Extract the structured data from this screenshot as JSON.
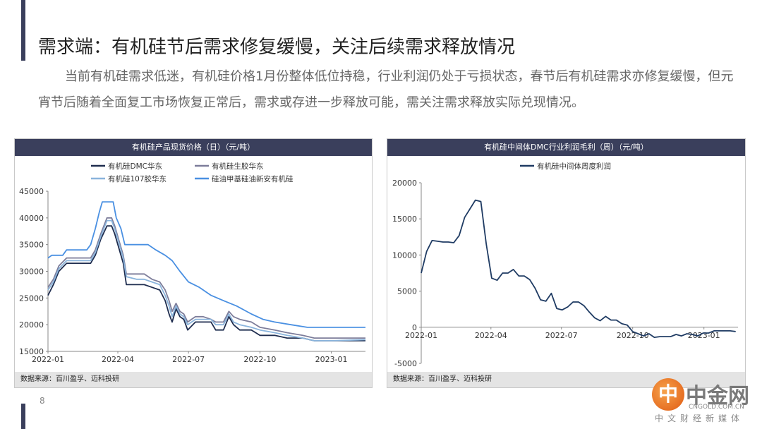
{
  "slide": {
    "title": "需求端：有机硅节后需求修复缓慢，关注后续需求释放情况",
    "body": "当前有机硅需求低迷，有机硅价格1月份整体低位持稳，行业利润仍处于亏损状态，春节后有机硅需求亦修复缓慢，但元宵节后随着全面复工市场恢复正常后，需求或存进一步释放可能，需关注需求释放实际兑现情况。",
    "page_number": "8",
    "accent_color": "#3a3f5c"
  },
  "logo": {
    "mark": "中",
    "name": "中金网",
    "domain": "CNGOLD.COM.CN",
    "tagline": "中文财经新媒体"
  },
  "chart_data": [
    {
      "type": "line",
      "title": "有机硅产品现货价格（日）（元/吨）",
      "source": "数据来源：百川盈孚、迈科投研",
      "xlabel": "",
      "ylabel": "",
      "x_ticks": [
        "2022-01",
        "2022-04",
        "2022-07",
        "2022-10",
        "2023-01"
      ],
      "x_range": [
        "2022-01-01",
        "2023-02-14"
      ],
      "ylim": [
        15000,
        45000
      ],
      "y_ticks": [
        15000,
        20000,
        25000,
        30000,
        35000,
        40000,
        45000
      ],
      "grid": false,
      "legend_position": "top",
      "series": [
        {
          "name": "有机硅DMC华东",
          "color": "#1f2d4f",
          "points": [
            [
              "2022-01-01",
              25500
            ],
            [
              "2022-01-08",
              27500
            ],
            [
              "2022-01-15",
              30000
            ],
            [
              "2022-01-25",
              31500
            ],
            [
              "2022-02-10",
              31500
            ],
            [
              "2022-02-25",
              31500
            ],
            [
              "2022-03-03",
              33000
            ],
            [
              "2022-03-10",
              36000
            ],
            [
              "2022-03-18",
              38500
            ],
            [
              "2022-03-24",
              38500
            ],
            [
              "2022-03-28",
              37000
            ],
            [
              "2022-04-02",
              34500
            ],
            [
              "2022-04-08",
              31500
            ],
            [
              "2022-04-12",
              27500
            ],
            [
              "2022-04-25",
              27500
            ],
            [
              "2022-05-05",
              27500
            ],
            [
              "2022-05-15",
              27000
            ],
            [
              "2022-05-25",
              26500
            ],
            [
              "2022-06-01",
              24500
            ],
            [
              "2022-06-06",
              22000
            ],
            [
              "2022-06-10",
              20500
            ],
            [
              "2022-06-15",
              23000
            ],
            [
              "2022-06-20",
              21500
            ],
            [
              "2022-06-25",
              21000
            ],
            [
              "2022-06-30",
              19000
            ],
            [
              "2022-07-10",
              20500
            ],
            [
              "2022-07-20",
              20500
            ],
            [
              "2022-07-30",
              20500
            ],
            [
              "2022-08-05",
              19000
            ],
            [
              "2022-08-15",
              19000
            ],
            [
              "2022-08-22",
              21500
            ],
            [
              "2022-08-28",
              20000
            ],
            [
              "2022-09-05",
              19000
            ],
            [
              "2022-09-20",
              19000
            ],
            [
              "2022-10-01",
              18000
            ],
            [
              "2022-10-20",
              18000
            ],
            [
              "2022-11-05",
              17500
            ],
            [
              "2022-11-25",
              17500
            ],
            [
              "2022-12-10",
              17000
            ],
            [
              "2023-01-01",
              17000
            ],
            [
              "2023-02-14",
              17000
            ]
          ]
        },
        {
          "name": "有机硅生胶华东",
          "color": "#7d7d9a",
          "points": [
            [
              "2022-01-01",
              27000
            ],
            [
              "2022-01-08",
              28500
            ],
            [
              "2022-01-15",
              31000
            ],
            [
              "2022-01-25",
              32500
            ],
            [
              "2022-02-10",
              32500
            ],
            [
              "2022-02-25",
              32500
            ],
            [
              "2022-03-03",
              34000
            ],
            [
              "2022-03-10",
              37000
            ],
            [
              "2022-03-18",
              40000
            ],
            [
              "2022-03-24",
              40000
            ],
            [
              "2022-03-28",
              38500
            ],
            [
              "2022-04-02",
              36000
            ],
            [
              "2022-04-08",
              33000
            ],
            [
              "2022-04-12",
              29500
            ],
            [
              "2022-04-25",
              29500
            ],
            [
              "2022-05-05",
              29500
            ],
            [
              "2022-05-15",
              28500
            ],
            [
              "2022-05-25",
              28000
            ],
            [
              "2022-06-01",
              26500
            ],
            [
              "2022-06-06",
              24500
            ],
            [
              "2022-06-10",
              22500
            ],
            [
              "2022-06-15",
              24000
            ],
            [
              "2022-06-20",
              22500
            ],
            [
              "2022-06-25",
              22000
            ],
            [
              "2022-06-30",
              20500
            ],
            [
              "2022-07-10",
              21500
            ],
            [
              "2022-07-20",
              21500
            ],
            [
              "2022-07-30",
              21000
            ],
            [
              "2022-08-05",
              20500
            ],
            [
              "2022-08-15",
              20500
            ],
            [
              "2022-08-22",
              22500
            ],
            [
              "2022-08-28",
              21500
            ],
            [
              "2022-09-05",
              21000
            ],
            [
              "2022-09-20",
              20500
            ],
            [
              "2022-10-01",
              19500
            ],
            [
              "2022-10-20",
              19000
            ],
            [
              "2022-11-05",
              18500
            ],
            [
              "2022-11-25",
              18000
            ],
            [
              "2022-12-10",
              17500
            ],
            [
              "2023-01-01",
              17500
            ],
            [
              "2023-02-14",
              17500
            ]
          ]
        },
        {
          "name": "有机硅107胶华东",
          "color": "#8ab4dc",
          "points": [
            [
              "2022-01-01",
              26500
            ],
            [
              "2022-01-08",
              28000
            ],
            [
              "2022-01-15",
              30500
            ],
            [
              "2022-01-25",
              32000
            ],
            [
              "2022-02-10",
              32000
            ],
            [
              "2022-02-25",
              32000
            ],
            [
              "2022-03-03",
              33500
            ],
            [
              "2022-03-10",
              36500
            ],
            [
              "2022-03-18",
              39500
            ],
            [
              "2022-03-24",
              39500
            ],
            [
              "2022-03-28",
              38000
            ],
            [
              "2022-04-02",
              35500
            ],
            [
              "2022-04-08",
              32500
            ],
            [
              "2022-04-12",
              29000
            ],
            [
              "2022-04-25",
              28500
            ],
            [
              "2022-05-05",
              28500
            ],
            [
              "2022-05-15",
              28000
            ],
            [
              "2022-05-25",
              27500
            ],
            [
              "2022-06-01",
              25500
            ],
            [
              "2022-06-06",
              23500
            ],
            [
              "2022-06-10",
              21500
            ],
            [
              "2022-06-15",
              23500
            ],
            [
              "2022-06-20",
              22000
            ],
            [
              "2022-06-25",
              21500
            ],
            [
              "2022-06-30",
              20000
            ],
            [
              "2022-07-10",
              21000
            ],
            [
              "2022-07-20",
              21000
            ],
            [
              "2022-07-30",
              21000
            ],
            [
              "2022-08-05",
              20000
            ],
            [
              "2022-08-15",
              20000
            ],
            [
              "2022-08-22",
              22000
            ],
            [
              "2022-08-28",
              20500
            ],
            [
              "2022-09-05",
              20000
            ],
            [
              "2022-09-20",
              19500
            ],
            [
              "2022-10-01",
              19000
            ],
            [
              "2022-10-20",
              18500
            ],
            [
              "2022-11-05",
              18000
            ],
            [
              "2022-11-25",
              17500
            ],
            [
              "2022-12-10",
              17000
            ],
            [
              "2023-01-01",
              17000
            ],
            [
              "2023-02-14",
              17200
            ]
          ]
        },
        {
          "name": "硅油甲基硅油新安有机硅",
          "color": "#4a90e2",
          "points": [
            [
              "2022-01-01",
              32500
            ],
            [
              "2022-01-06",
              33000
            ],
            [
              "2022-01-20",
              33000
            ],
            [
              "2022-01-25",
              34000
            ],
            [
              "2022-02-20",
              34000
            ],
            [
              "2022-02-25",
              35000
            ],
            [
              "2022-03-03",
              38000
            ],
            [
              "2022-03-08",
              41000
            ],
            [
              "2022-03-12",
              43000
            ],
            [
              "2022-03-26",
              43000
            ],
            [
              "2022-03-30",
              40000
            ],
            [
              "2022-04-05",
              38000
            ],
            [
              "2022-04-10",
              35000
            ],
            [
              "2022-05-10",
              35000
            ],
            [
              "2022-05-20",
              34000
            ],
            [
              "2022-06-01",
              33000
            ],
            [
              "2022-06-10",
              32000
            ],
            [
              "2022-06-20",
              30000
            ],
            [
              "2022-07-01",
              28000
            ],
            [
              "2022-07-15",
              27000
            ],
            [
              "2022-07-30",
              25500
            ],
            [
              "2022-08-15",
              24500
            ],
            [
              "2022-09-01",
              23500
            ],
            [
              "2022-09-20",
              22000
            ],
            [
              "2022-10-05",
              21000
            ],
            [
              "2022-10-20",
              20500
            ],
            [
              "2022-11-10",
              20000
            ],
            [
              "2022-12-01",
              19500
            ],
            [
              "2022-12-20",
              19500
            ],
            [
              "2023-01-15",
              19500
            ],
            [
              "2023-02-14",
              19500
            ]
          ]
        }
      ]
    },
    {
      "type": "line",
      "title": "有机硅中间体DMC行业利润毛利（周）（元/吨）",
      "source": "数据来源：百川盈孚、迈科投研",
      "xlabel": "",
      "ylabel": "",
      "x_ticks": [
        "2022-01",
        "2022-04",
        "2022-07",
        "2022-10",
        "2023-01"
      ],
      "x_range": [
        "2022-01-01",
        "2023-02-14"
      ],
      "ylim": [
        -5000,
        20000
      ],
      "y_ticks": [
        -5000,
        0,
        5000,
        10000,
        15000,
        20000
      ],
      "grid": false,
      "legend_position": "top",
      "series": [
        {
          "name": "有机硅中间体周度利润",
          "color": "#1f3b63",
          "points": [
            [
              "2022-01-01",
              7500
            ],
            [
              "2022-01-08",
              10500
            ],
            [
              "2022-01-15",
              12000
            ],
            [
              "2022-01-22",
              11900
            ],
            [
              "2022-01-29",
              11800
            ],
            [
              "2022-02-05",
              11800
            ],
            [
              "2022-02-12",
              11700
            ],
            [
              "2022-02-19",
              12700
            ],
            [
              "2022-02-26",
              15200
            ],
            [
              "2022-03-05",
              16400
            ],
            [
              "2022-03-12",
              17600
            ],
            [
              "2022-03-19",
              17400
            ],
            [
              "2022-03-26",
              11500
            ],
            [
              "2022-04-02",
              6800
            ],
            [
              "2022-04-09",
              6500
            ],
            [
              "2022-04-16",
              7500
            ],
            [
              "2022-04-23",
              7500
            ],
            [
              "2022-04-30",
              8000
            ],
            [
              "2022-05-07",
              7100
            ],
            [
              "2022-05-14",
              7100
            ],
            [
              "2022-05-21",
              6600
            ],
            [
              "2022-05-28",
              5400
            ],
            [
              "2022-06-04",
              3800
            ],
            [
              "2022-06-11",
              3600
            ],
            [
              "2022-06-18",
              4700
            ],
            [
              "2022-06-25",
              2600
            ],
            [
              "2022-07-02",
              2400
            ],
            [
              "2022-07-09",
              2800
            ],
            [
              "2022-07-16",
              3500
            ],
            [
              "2022-07-23",
              3500
            ],
            [
              "2022-07-30",
              3000
            ],
            [
              "2022-08-06",
              2100
            ],
            [
              "2022-08-13",
              1300
            ],
            [
              "2022-08-20",
              900
            ],
            [
              "2022-08-27",
              1500
            ],
            [
              "2022-09-03",
              1000
            ],
            [
              "2022-09-10",
              1000
            ],
            [
              "2022-09-17",
              500
            ],
            [
              "2022-09-24",
              300
            ],
            [
              "2022-10-01",
              -600
            ],
            [
              "2022-10-08",
              -900
            ],
            [
              "2022-10-15",
              -1200
            ],
            [
              "2022-10-22",
              -900
            ],
            [
              "2022-10-29",
              -1400
            ],
            [
              "2022-11-05",
              -1300
            ],
            [
              "2022-11-12",
              -1300
            ],
            [
              "2022-11-19",
              -1300
            ],
            [
              "2022-11-26",
              -1000
            ],
            [
              "2022-12-03",
              -1200
            ],
            [
              "2022-12-10",
              -900
            ],
            [
              "2022-12-17",
              -1000
            ],
            [
              "2022-12-24",
              -1200
            ],
            [
              "2022-12-31",
              -800
            ],
            [
              "2023-01-07",
              -800
            ],
            [
              "2023-01-14",
              -500
            ],
            [
              "2023-01-21",
              -500
            ],
            [
              "2023-01-28",
              -500
            ],
            [
              "2023-02-04",
              -500
            ],
            [
              "2023-02-11",
              -600
            ]
          ]
        }
      ]
    }
  ]
}
